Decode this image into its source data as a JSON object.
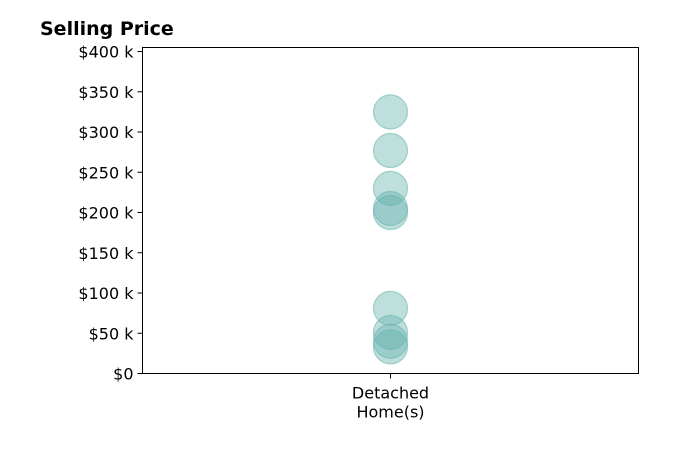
{
  "chart_data": {
    "type": "scatter",
    "title": "Selling Price",
    "xlabel": "",
    "ylabel": "",
    "categories": [
      "Detached\nHome(s)"
    ],
    "ylim": [
      0,
      405000
    ],
    "yticks": [
      0,
      50000,
      100000,
      150000,
      200000,
      250000,
      300000,
      350000,
      400000
    ],
    "ytick_labels": [
      "$0",
      "$50 k",
      "$100 k",
      "$150 k",
      "$200 k",
      "$250 k",
      "$300 k",
      "$350 k",
      "$400 k"
    ],
    "grid": false,
    "legend": "none",
    "marker_color": "#66b2ad",
    "series": [
      {
        "category": "Detached\nHome(s)",
        "values": [
          325000,
          277000,
          230000,
          205000,
          200000,
          81000,
          51000,
          40000,
          33000
        ]
      }
    ]
  }
}
